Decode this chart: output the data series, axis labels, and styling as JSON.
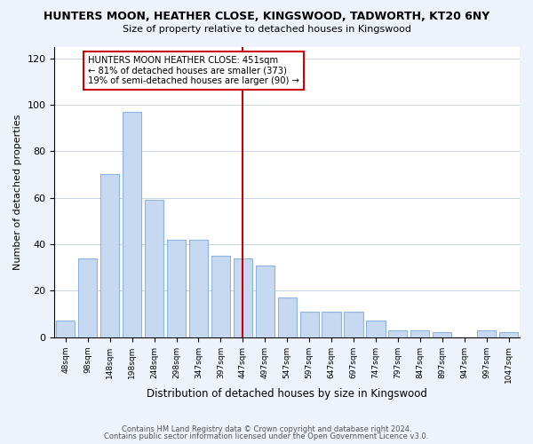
{
  "title": "HUNTERS MOON, HEATHER CLOSE, KINGSWOOD, TADWORTH, KT20 6NY",
  "subtitle": "Size of property relative to detached houses in Kingswood",
  "xlabel": "Distribution of detached houses by size in Kingswood",
  "ylabel": "Number of detached properties",
  "bar_labels": [
    "48sqm",
    "98sqm",
    "148sqm",
    "198sqm",
    "248sqm",
    "298sqm",
    "347sqm",
    "397sqm",
    "447sqm",
    "497sqm",
    "547sqm",
    "597sqm",
    "647sqm",
    "697sqm",
    "747sqm",
    "797sqm",
    "847sqm",
    "897sqm",
    "947sqm",
    "997sqm",
    "1047sqm"
  ],
  "bar_heights": [
    7,
    34,
    70,
    97,
    59,
    42,
    42,
    35,
    34,
    31,
    17,
    11,
    11,
    11,
    7,
    3,
    3,
    2,
    0,
    3,
    2
  ],
  "bar_color": "#c6d9f1",
  "bar_edgecolor": "#8db4e2",
  "vline_index": 8,
  "vline_color": "#cc0000",
  "annotation_title": "HUNTERS MOON HEATHER CLOSE: 451sqm",
  "annotation_line1": "← 81% of detached houses are smaller (373)",
  "annotation_line2": "19% of semi-detached houses are larger (90) →",
  "annotation_box_color": "#ffffff",
  "annotation_box_edgecolor": "#cc0000",
  "ylim": [
    0,
    125
  ],
  "yticks": [
    0,
    20,
    40,
    60,
    80,
    100,
    120
  ],
  "footer1": "Contains HM Land Registry data © Crown copyright and database right 2024.",
  "footer2": "Contains public sector information licensed under the Open Government Licence v3.0.",
  "bg_color": "#eef2fb",
  "plot_bg_color": "#ffffff"
}
